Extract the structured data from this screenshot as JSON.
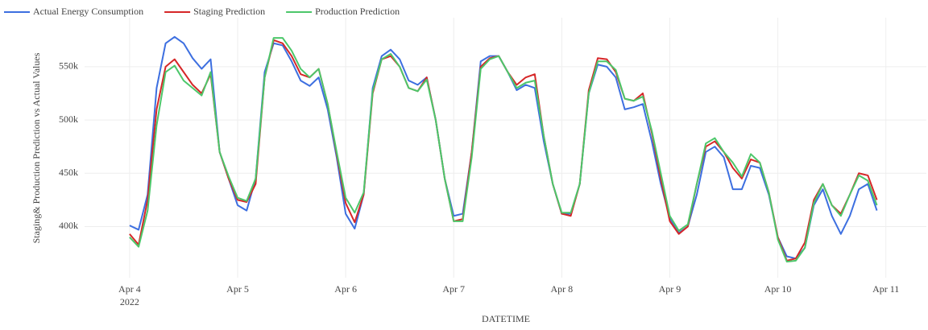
{
  "chart_data": {
    "type": "line",
    "x_label": "DATETIME",
    "y_label": "Staging& Production Prediction vs Actual Values",
    "x": [
      "2022-04-04 00:00",
      "2022-04-04 02:00",
      "2022-04-04 04:00",
      "2022-04-04 06:00",
      "2022-04-04 08:00",
      "2022-04-04 10:00",
      "2022-04-04 12:00",
      "2022-04-04 14:00",
      "2022-04-04 16:00",
      "2022-04-04 18:00",
      "2022-04-04 20:00",
      "2022-04-04 22:00",
      "2022-04-05 00:00",
      "2022-04-05 02:00",
      "2022-04-05 04:00",
      "2022-04-05 06:00",
      "2022-04-05 08:00",
      "2022-04-05 10:00",
      "2022-04-05 12:00",
      "2022-04-05 14:00",
      "2022-04-05 16:00",
      "2022-04-05 18:00",
      "2022-04-05 20:00",
      "2022-04-05 22:00",
      "2022-04-06 00:00",
      "2022-04-06 02:00",
      "2022-04-06 04:00",
      "2022-04-06 06:00",
      "2022-04-06 08:00",
      "2022-04-06 10:00",
      "2022-04-06 12:00",
      "2022-04-06 14:00",
      "2022-04-06 16:00",
      "2022-04-06 18:00",
      "2022-04-06 20:00",
      "2022-04-06 22:00",
      "2022-04-07 00:00",
      "2022-04-07 02:00",
      "2022-04-07 04:00",
      "2022-04-07 06:00",
      "2022-04-07 08:00",
      "2022-04-07 10:00",
      "2022-04-07 12:00",
      "2022-04-07 14:00",
      "2022-04-07 16:00",
      "2022-04-07 18:00",
      "2022-04-07 20:00",
      "2022-04-07 22:00",
      "2022-04-08 00:00",
      "2022-04-08 02:00",
      "2022-04-08 04:00",
      "2022-04-08 06:00",
      "2022-04-08 08:00",
      "2022-04-08 10:00",
      "2022-04-08 12:00",
      "2022-04-08 14:00",
      "2022-04-08 16:00",
      "2022-04-08 18:00",
      "2022-04-08 20:00",
      "2022-04-08 22:00",
      "2022-04-09 00:00",
      "2022-04-09 02:00",
      "2022-04-09 04:00",
      "2022-04-09 06:00",
      "2022-04-09 08:00",
      "2022-04-09 10:00",
      "2022-04-09 12:00",
      "2022-04-09 14:00",
      "2022-04-09 16:00",
      "2022-04-09 18:00",
      "2022-04-09 20:00",
      "2022-04-09 22:00",
      "2022-04-10 00:00",
      "2022-04-10 02:00",
      "2022-04-10 04:00",
      "2022-04-10 06:00",
      "2022-04-10 08:00",
      "2022-04-10 10:00",
      "2022-04-10 12:00",
      "2022-04-10 14:00",
      "2022-04-10 16:00",
      "2022-04-10 18:00",
      "2022-04-10 20:00",
      "2022-04-10 22:00"
    ],
    "series": [
      {
        "name": "Actual Energy Consumption",
        "color": "#3d6fe0",
        "values": [
          401000,
          397000,
          430000,
          530000,
          572000,
          578000,
          572000,
          558000,
          548000,
          557000,
          470000,
          445000,
          420000,
          415000,
          445000,
          545000,
          572000,
          570000,
          555000,
          537000,
          532000,
          540000,
          510000,
          465000,
          412000,
          398000,
          430000,
          530000,
          560000,
          566000,
          557000,
          537000,
          533000,
          540000,
          500000,
          445000,
          410000,
          412000,
          470000,
          555000,
          560000,
          560000,
          545000,
          528000,
          533000,
          530000,
          480000,
          440000,
          412000,
          412000,
          440000,
          525000,
          552000,
          550000,
          540000,
          510000,
          512000,
          515000,
          480000,
          440000,
          408000,
          394000,
          400000,
          430000,
          470000,
          475000,
          465000,
          435000,
          435000,
          457000,
          455000,
          430000,
          390000,
          372000,
          370000,
          380000,
          420000,
          435000,
          410000,
          393000,
          410000,
          435000,
          440000,
          415000
        ]
      },
      {
        "name": "Staging Prediction",
        "color": "#d62728",
        "values": [
          393000,
          383000,
          425000,
          510000,
          550000,
          557000,
          545000,
          533000,
          525000,
          543000,
          470000,
          445000,
          425000,
          423000,
          440000,
          540000,
          575000,
          572000,
          560000,
          543000,
          540000,
          548000,
          515000,
          468000,
          422000,
          404000,
          430000,
          525000,
          557000,
          560000,
          550000,
          530000,
          527000,
          540000,
          500000,
          445000,
          405000,
          407000,
          470000,
          550000,
          558000,
          560000,
          545000,
          533000,
          540000,
          543000,
          485000,
          440000,
          412000,
          410000,
          440000,
          528000,
          558000,
          557000,
          545000,
          520000,
          518000,
          525000,
          488000,
          445000,
          405000,
          393000,
          400000,
          440000,
          475000,
          480000,
          470000,
          455000,
          445000,
          463000,
          460000,
          432000,
          390000,
          368000,
          370000,
          385000,
          425000,
          440000,
          420000,
          412000,
          430000,
          450000,
          448000,
          425000
        ]
      },
      {
        "name": "Production Prediction",
        "color": "#4cc76a",
        "values": [
          390000,
          381000,
          415000,
          495000,
          545000,
          551000,
          537000,
          530000,
          523000,
          545000,
          470000,
          447000,
          427000,
          424000,
          445000,
          540000,
          577000,
          577000,
          565000,
          548000,
          540000,
          548000,
          515000,
          470000,
          427000,
          413000,
          432000,
          527000,
          557000,
          562000,
          550000,
          530000,
          527000,
          538000,
          500000,
          445000,
          405000,
          405000,
          465000,
          548000,
          557000,
          560000,
          545000,
          530000,
          535000,
          537000,
          485000,
          440000,
          413000,
          413000,
          440000,
          525000,
          555000,
          555000,
          547000,
          520000,
          518000,
          522000,
          490000,
          450000,
          410000,
          396000,
          402000,
          440000,
          478000,
          483000,
          470000,
          460000,
          447000,
          468000,
          460000,
          432000,
          388000,
          367000,
          368000,
          380000,
          422000,
          440000,
          420000,
          410000,
          430000,
          448000,
          443000,
          420000
        ]
      }
    ],
    "xlim": [
      "2022-04-03 14:00",
      "2022-04-11 09:00"
    ],
    "xticks": [
      {
        "value": "2022-04-04 00:00",
        "label": "Apr 4"
      },
      {
        "value": "2022-04-05 00:00",
        "label": "Apr 5"
      },
      {
        "value": "2022-04-06 00:00",
        "label": "Apr 6"
      },
      {
        "value": "2022-04-07 00:00",
        "label": "Apr 7"
      },
      {
        "value": "2022-04-08 00:00",
        "label": "Apr 8"
      },
      {
        "value": "2022-04-09 00:00",
        "label": "Apr 9"
      },
      {
        "value": "2022-04-10 00:00",
        "label": "Apr 10"
      },
      {
        "value": "2022-04-11 00:00",
        "label": "Apr 11"
      }
    ],
    "x_year_label": "2022",
    "ylim": [
      352000,
      596000
    ],
    "yticks": [
      {
        "value": 400000,
        "label": "400k"
      },
      {
        "value": 450000,
        "label": "450k"
      },
      {
        "value": 500000,
        "label": "500k"
      },
      {
        "value": 550000,
        "label": "550k"
      }
    ],
    "grid": true,
    "legend": "top-left"
  }
}
